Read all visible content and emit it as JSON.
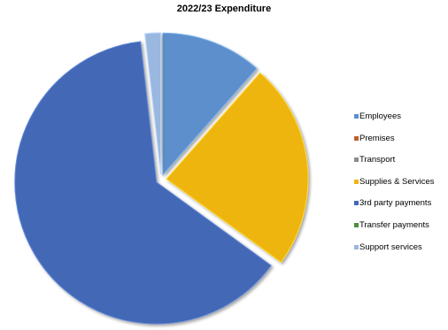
{
  "chart_data": {
    "type": "pie",
    "title": "2022/23 Expenditure",
    "categories": [
      "Employees",
      "Premises",
      "Transport",
      "Supplies & Services",
      "3rd party payments",
      "Transfer payments",
      "Support services"
    ],
    "values": [
      11.5,
      0,
      0,
      23.5,
      63.2,
      0,
      1.8
    ],
    "colors": [
      "#5B8FCC",
      "#C0602A",
      "#8C8C8C",
      "#EDB511",
      "#4268B6",
      "#4D8F3C",
      "#9AB7DF"
    ],
    "exploded": true,
    "legend_position": "right",
    "start_angle": "top, clockwise"
  }
}
